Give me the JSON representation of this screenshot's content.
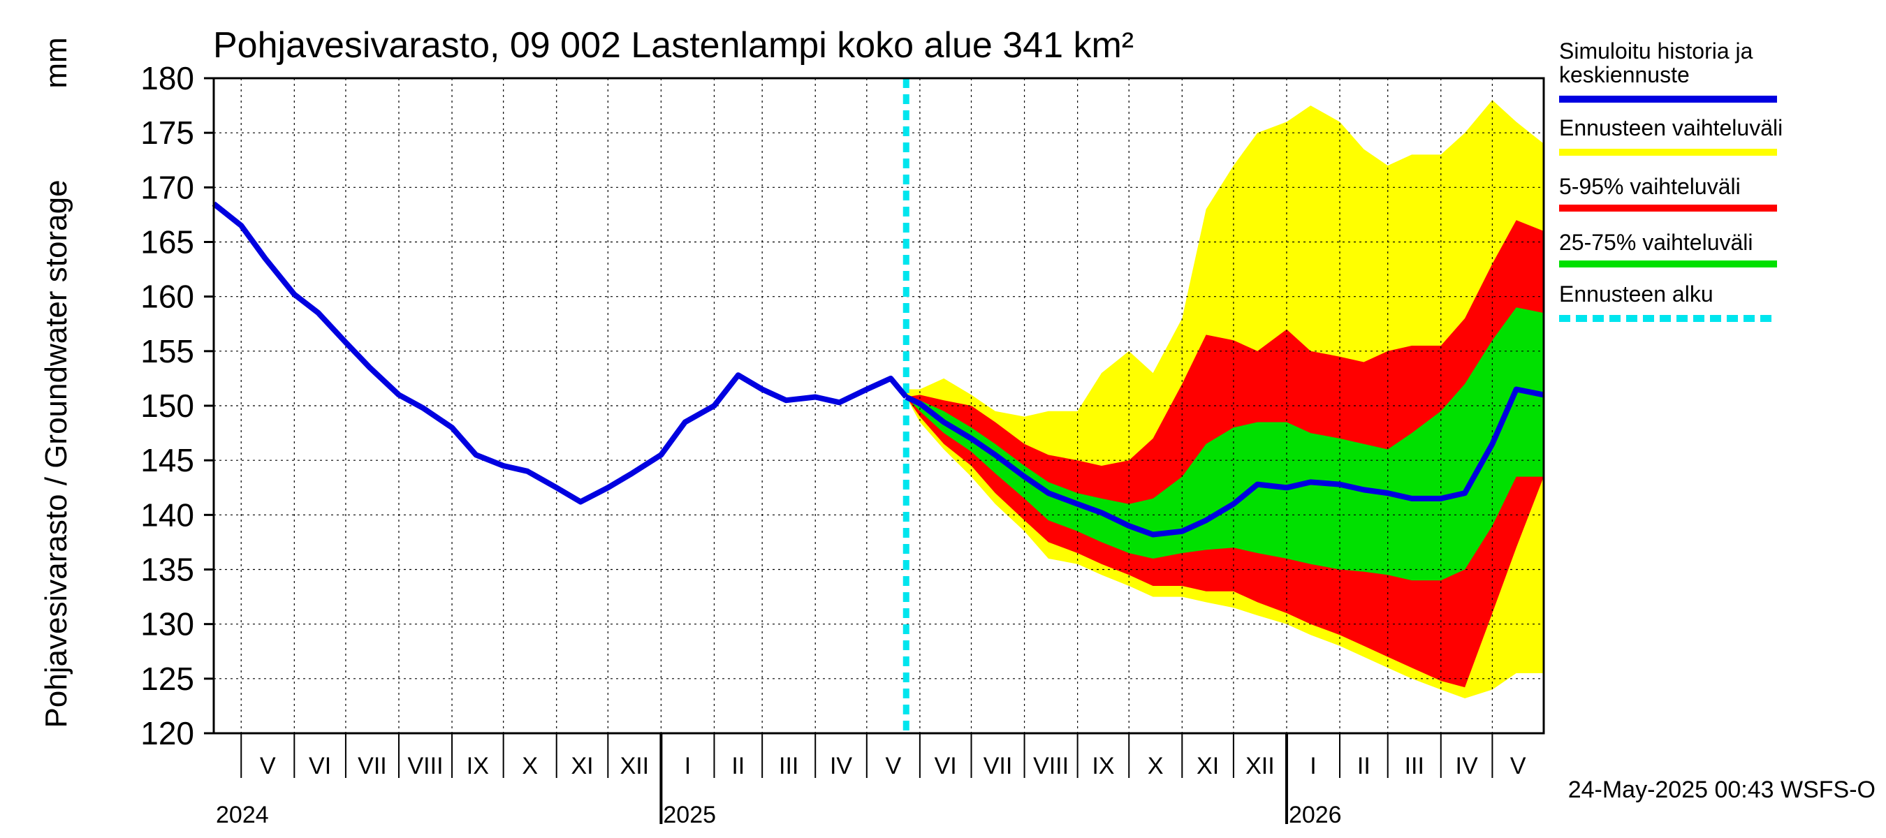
{
  "chart_data": {
    "type": "area",
    "title": "Pohjavesivarasto, 09 002 Lastenlampi koko alue 341 km²",
    "ylabel": "Pohjavesivarasto / Groundwater storage",
    "yunit": "mm",
    "ylim": [
      120,
      180
    ],
    "yticks": [
      120,
      125,
      130,
      135,
      140,
      145,
      150,
      155,
      160,
      165,
      170,
      175,
      180
    ],
    "grid": true,
    "x_start": "2024-04-15",
    "x_end": "2026-05-31",
    "forecast_start": "2025-05-24",
    "month_labels": [
      {
        "label": "V",
        "month": "2024-05"
      },
      {
        "label": "VI",
        "month": "2024-06"
      },
      {
        "label": "VII",
        "month": "2024-07"
      },
      {
        "label": "VIII",
        "month": "2024-08"
      },
      {
        "label": "IX",
        "month": "2024-09"
      },
      {
        "label": "X",
        "month": "2024-10"
      },
      {
        "label": "XI",
        "month": "2024-11"
      },
      {
        "label": "XII",
        "month": "2024-12"
      },
      {
        "label": "I",
        "month": "2025-01"
      },
      {
        "label": "II",
        "month": "2025-02"
      },
      {
        "label": "III",
        "month": "2025-03"
      },
      {
        "label": "IV",
        "month": "2025-04"
      },
      {
        "label": "V",
        "month": "2025-05"
      },
      {
        "label": "VI",
        "month": "2025-06"
      },
      {
        "label": "VII",
        "month": "2025-07"
      },
      {
        "label": "VIII",
        "month": "2025-08"
      },
      {
        "label": "IX",
        "month": "2025-09"
      },
      {
        "label": "X",
        "month": "2025-10"
      },
      {
        "label": "XI",
        "month": "2025-11"
      },
      {
        "label": "XII",
        "month": "2025-12"
      },
      {
        "label": "I",
        "month": "2026-01"
      },
      {
        "label": "II",
        "month": "2026-02"
      },
      {
        "label": "III",
        "month": "2026-03"
      },
      {
        "label": "IV",
        "month": "2026-04"
      },
      {
        "label": "V",
        "month": "2026-05"
      }
    ],
    "year_labels": [
      {
        "label": "2024",
        "date": "2024-04-15"
      },
      {
        "label": "2025",
        "date": "2025-01-01"
      },
      {
        "label": "2026",
        "date": "2026-01-01"
      }
    ],
    "legend": [
      {
        "key": "history",
        "label_lines": [
          "Simuloitu historia ja",
          "keskiennuste"
        ],
        "color": "#0000e0",
        "style": "solid"
      },
      {
        "key": "range",
        "label_lines": [
          "Ennusteen vaihteluväli"
        ],
        "color": "#ffff00",
        "style": "solid"
      },
      {
        "key": "p5_95",
        "label_lines": [
          "5-95% vaihteluväli"
        ],
        "color": "#ff0000",
        "style": "solid"
      },
      {
        "key": "p25_75",
        "label_lines": [
          "25-75% vaihteluväli"
        ],
        "color": "#00e000",
        "style": "solid"
      },
      {
        "key": "start",
        "label_lines": [
          "Ennusteen alku"
        ],
        "color": "#00e5ee",
        "style": "dashed"
      }
    ],
    "footer": "24-May-2025 00:43 WSFS-O",
    "series": {
      "history": {
        "dates": [
          "2024-04-15",
          "2024-05-01",
          "2024-05-15",
          "2024-06-01",
          "2024-06-15",
          "2024-07-01",
          "2024-07-15",
          "2024-08-01",
          "2024-08-15",
          "2024-09-01",
          "2024-09-15",
          "2024-10-01",
          "2024-10-15",
          "2024-11-01",
          "2024-11-15",
          "2024-12-01",
          "2024-12-15",
          "2025-01-01",
          "2025-01-15",
          "2025-02-01",
          "2025-02-15",
          "2025-03-01",
          "2025-03-15",
          "2025-04-01",
          "2025-04-15",
          "2025-05-01",
          "2025-05-15",
          "2025-05-24"
        ],
        "values": [
          168.5,
          166.5,
          163.5,
          160.2,
          158.5,
          155.8,
          153.5,
          151.0,
          149.8,
          148.0,
          145.5,
          144.5,
          144.0,
          142.5,
          141.2,
          142.5,
          143.8,
          145.5,
          148.5,
          150.0,
          152.8,
          151.5,
          150.5,
          150.8,
          150.3,
          151.5,
          152.5,
          150.8
        ]
      },
      "forecast_dates": [
        "2025-05-24",
        "2025-06-01",
        "2025-06-15",
        "2025-07-01",
        "2025-07-15",
        "2025-08-01",
        "2025-08-15",
        "2025-09-01",
        "2025-09-15",
        "2025-10-01",
        "2025-10-15",
        "2025-11-01",
        "2025-11-15",
        "2025-12-01",
        "2025-12-15",
        "2026-01-01",
        "2026-01-15",
        "2026-02-01",
        "2026-02-15",
        "2026-03-01",
        "2026-03-15",
        "2026-04-01",
        "2026-04-15",
        "2026-05-01",
        "2026-05-15",
        "2026-05-31"
      ],
      "median": [
        150.8,
        150.2,
        148.5,
        147.0,
        145.5,
        143.5,
        142.0,
        141.0,
        140.2,
        139.0,
        138.2,
        138.5,
        139.5,
        141.0,
        142.8,
        142.5,
        143.0,
        142.8,
        142.3,
        142.0,
        141.5,
        141.5,
        142.0,
        146.5,
        151.5,
        151.0
      ],
      "p25": [
        150.8,
        149.5,
        147.5,
        145.8,
        143.8,
        141.5,
        139.5,
        138.5,
        137.5,
        136.5,
        136.0,
        136.5,
        136.8,
        137.0,
        136.5,
        136.0,
        135.5,
        135.0,
        134.8,
        134.5,
        134.0,
        134.0,
        135.0,
        139.0,
        143.5,
        143.5
      ],
      "p75": [
        150.8,
        150.5,
        149.5,
        148.0,
        146.5,
        144.5,
        143.0,
        142.0,
        141.5,
        141.0,
        141.5,
        143.5,
        146.5,
        148.0,
        148.5,
        148.5,
        147.5,
        147.0,
        146.5,
        146.0,
        147.5,
        149.5,
        152.0,
        156.0,
        159.0,
        158.5
      ],
      "p5": [
        150.8,
        149.0,
        146.5,
        144.5,
        142.0,
        139.5,
        137.5,
        136.5,
        135.5,
        134.5,
        133.5,
        133.5,
        133.0,
        133.0,
        132.0,
        131.0,
        130.0,
        129.0,
        128.0,
        127.0,
        126.0,
        124.8,
        124.2,
        131.0,
        137.0,
        143.5
      ],
      "p95": [
        150.8,
        151.0,
        150.5,
        150.0,
        148.5,
        146.5,
        145.5,
        145.0,
        144.5,
        145.0,
        147.0,
        152.0,
        156.5,
        156.0,
        155.0,
        157.0,
        155.0,
        154.5,
        154.0,
        155.0,
        155.5,
        155.5,
        158.0,
        163.0,
        167.0,
        166.0
      ],
      "min": [
        150.8,
        148.5,
        146.0,
        143.5,
        141.0,
        138.5,
        136.0,
        135.5,
        134.5,
        133.5,
        132.5,
        132.5,
        132.0,
        131.5,
        130.8,
        130.0,
        129.0,
        128.0,
        127.0,
        126.0,
        125.0,
        124.0,
        123.2,
        124.0,
        125.5,
        125.5
      ],
      "max": [
        151.5,
        151.5,
        152.5,
        151.0,
        149.5,
        149.0,
        149.5,
        149.5,
        153.0,
        155.0,
        153.0,
        158.0,
        168.0,
        172.0,
        175.0,
        176.0,
        177.5,
        176.0,
        173.5,
        172.0,
        173.0,
        173.0,
        175.0,
        178.0,
        176.0,
        174.0
      ]
    }
  }
}
